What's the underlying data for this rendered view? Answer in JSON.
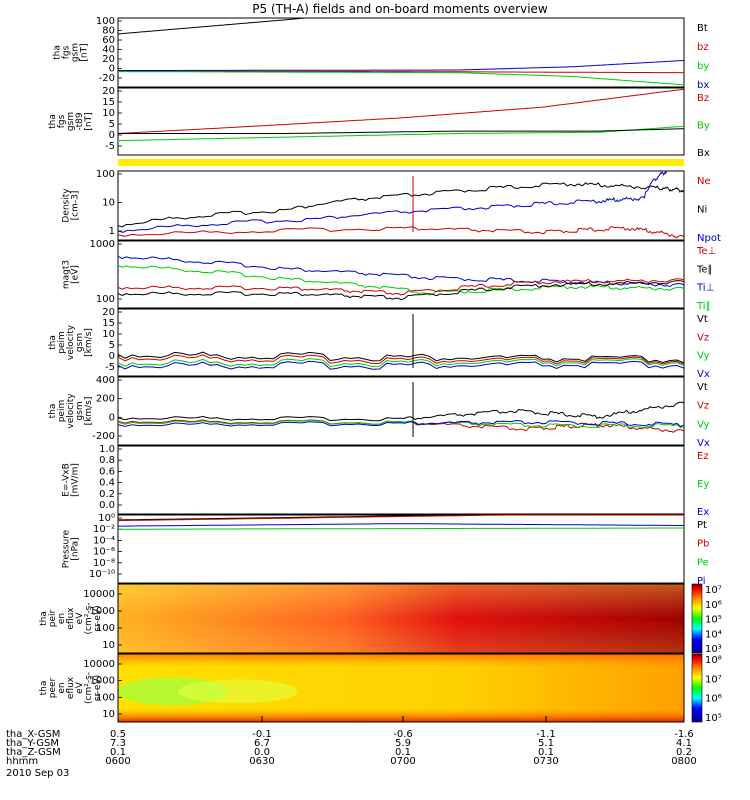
{
  "title": "P5 (TH-A) fields and on-board moments overview",
  "colors": {
    "black": "#000000",
    "red": "#cc0000",
    "green": "#00cc00",
    "blue": "#0000cc"
  },
  "chart_data": {
    "type": "line",
    "title": "P5 (TH-A) fields and on-board moments overview",
    "x": [
      "0600",
      "0630",
      "0700",
      "0730",
      "0800"
    ],
    "panels": [
      {
        "id": "fgs-gsm",
        "ylabel": [
          "tha",
          "fgs",
          "gsm",
          "[nT]"
        ],
        "ylim": [
          -30,
          100
        ],
        "yticks": [
          "100",
          "80",
          "60",
          "40",
          "20",
          "0",
          "-20"
        ],
        "legend": [
          "Bt",
          "bz",
          "by",
          "bx"
        ],
        "series": [
          {
            "name": "Bt",
            "color": "black",
            "points": [
              [
                0,
                70
              ],
              [
                0.1,
                79
              ],
              [
                0.2,
                88
              ],
              [
                0.3,
                97
              ],
              [
                0.33,
                100
              ]
            ]
          },
          {
            "name": "bz",
            "color": "red",
            "points": [
              [
                0,
                0
              ],
              [
                0.5,
                -1
              ],
              [
                1,
                -3
              ]
            ]
          },
          {
            "name": "by",
            "color": "green",
            "points": [
              [
                0,
                -1
              ],
              [
                0.6,
                -3
              ],
              [
                0.8,
                -10
              ],
              [
                1,
                -26
              ]
            ]
          },
          {
            "name": "bx",
            "color": "blue",
            "points": [
              [
                0,
                1
              ],
              [
                0.6,
                2
              ],
              [
                0.8,
                8
              ],
              [
                1,
                20
              ]
            ]
          }
        ]
      },
      {
        "id": "fgs-gsm-t89",
        "ylabel": [
          "tha",
          "fgs",
          "gsm",
          "-t89",
          "[nT]"
        ],
        "ylim": [
          -8,
          20
        ],
        "yticks": [
          "20",
          "15",
          "10",
          "5",
          "0",
          "-5"
        ],
        "legend": [
          "Bz",
          "By",
          "Bx"
        ],
        "series": [
          {
            "name": "Bz",
            "color": "red",
            "points": [
              [
                0,
                1
              ],
              [
                0.2,
                3.5
              ],
              [
                0.5,
                7.5
              ],
              [
                0.75,
                12
              ],
              [
                1,
                19.5
              ]
            ]
          },
          {
            "name": "By",
            "color": "green",
            "points": [
              [
                0,
                -2
              ],
              [
                0.3,
                -0.5
              ],
              [
                0.6,
                1
              ],
              [
                0.85,
                1.5
              ],
              [
                1,
                4
              ]
            ]
          },
          {
            "name": "Bx",
            "color": "black",
            "points": [
              [
                0,
                1
              ],
              [
                0.3,
                1
              ],
              [
                0.6,
                2
              ],
              [
                0.85,
                2
              ],
              [
                1,
                3
              ]
            ]
          }
        ]
      },
      {
        "id": "density",
        "ylabel": [
          "Density",
          "[cm-3]"
        ],
        "ylim": [
          1,
          200
        ],
        "log": true,
        "yticks": [
          "100",
          "10",
          "1"
        ],
        "legend": [
          "Ne",
          "Ni",
          "Npot"
        ],
        "series": [
          {
            "name": "Ne",
            "color": "red",
            "points": [
              [
                0,
                1.5
              ],
              [
                0.5,
                2.5
              ],
              [
                0.75,
                1.8
              ],
              [
                0.9,
                2.5
              ],
              [
                1,
                1.2
              ]
            ]
          },
          {
            "name": "Ni",
            "color": "black",
            "points": [
              [
                0,
                3
              ],
              [
                0.3,
                10
              ],
              [
                0.55,
                35
              ],
              [
                0.8,
                75
              ],
              [
                0.95,
                55
              ],
              [
                1,
                45
              ]
            ]
          },
          {
            "name": "Npot",
            "color": "blue",
            "points": [
              [
                0,
                2
              ],
              [
                0.35,
                5
              ],
              [
                0.65,
                12
              ],
              [
                0.85,
                20
              ],
              [
                0.93,
                25
              ],
              [
                0.97,
                200
              ]
            ]
          }
        ]
      },
      {
        "id": "mom-temp",
        "ylabel": [
          "magt3",
          "[eV]"
        ],
        "ylim": [
          100,
          2500
        ],
        "log": true,
        "yticks": [
          "1000",
          "100"
        ],
        "legend": [
          "Te⊥",
          "Te∥",
          "Ti⊥",
          "Ti∥"
        ],
        "series": [
          {
            "name": "Ti⊥",
            "color": "blue",
            "points": [
              [
                0,
                1200
              ],
              [
                0.3,
                650
              ],
              [
                0.55,
                420
              ],
              [
                0.8,
                350
              ],
              [
                1,
                300
              ]
            ]
          },
          {
            "name": "Ti∥",
            "color": "green",
            "points": [
              [
                0,
                780
              ],
              [
                0.3,
                400
              ],
              [
                0.55,
                200
              ],
              [
                0.8,
                280
              ],
              [
                1,
                250
              ]
            ]
          },
          {
            "name": "Te⊥",
            "color": "red",
            "points": [
              [
                0,
                270
              ],
              [
                0.3,
                260
              ],
              [
                0.5,
                200
              ],
              [
                0.75,
                350
              ],
              [
                1,
                380
              ]
            ]
          },
          {
            "name": "Te∥",
            "color": "black",
            "points": [
              [
                0,
                200
              ],
              [
                0.3,
                200
              ],
              [
                0.5,
                160
              ],
              [
                0.75,
                300
              ],
              [
                1,
                350
              ]
            ]
          }
        ]
      },
      {
        "id": "peim-velocity-1",
        "ylabel": [
          "tha",
          "peim",
          "velocity",
          "gsm",
          "[km/s]"
        ],
        "ylim": [
          -5,
          20
        ],
        "yticks": [
          "20",
          "15",
          "10",
          "5",
          "0",
          "-5"
        ],
        "legend": [
          "Vt",
          "Vz",
          "Vy",
          "Vx"
        ],
        "series": [
          {
            "name": "Vt",
            "color": "black",
            "points": [
              [
                0,
                3
              ],
              [
                0.5,
                2
              ],
              [
                1,
                1
              ]
            ]
          },
          {
            "name": "Vz",
            "color": "red",
            "points": [
              [
                0,
                2
              ],
              [
                0.5,
                1
              ],
              [
                1,
                0.5
              ]
            ]
          },
          {
            "name": "Vy",
            "color": "green",
            "points": [
              [
                0,
                0
              ],
              [
                0.5,
                0
              ],
              [
                1,
                0
              ]
            ]
          },
          {
            "name": "Vx",
            "color": "blue",
            "points": [
              [
                0,
                -1
              ],
              [
                0.5,
                -1
              ],
              [
                1,
                -1
              ]
            ]
          }
        ]
      },
      {
        "id": "peim-velocity-2",
        "ylabel": [
          "tha",
          "peim",
          "velocity",
          "gsm",
          "[km/s]"
        ],
        "ylim": [
          -200,
          400
        ],
        "yticks": [
          "400",
          "200",
          "0",
          "-200"
        ],
        "legend": [
          "Vt",
          "Vz",
          "Vy",
          "Vx"
        ],
        "series": [
          {
            "name": "Vt",
            "color": "black",
            "points": [
              [
                0,
                40
              ],
              [
                0.5,
                30
              ],
              [
                0.7,
                100
              ],
              [
                0.85,
                50
              ],
              [
                1,
                170
              ]
            ]
          },
          {
            "name": "Vz",
            "color": "red",
            "points": [
              [
                0,
                10
              ],
              [
                0.5,
                0
              ],
              [
                0.72,
                -60
              ],
              [
                0.85,
                -20
              ],
              [
                1,
                -80
              ]
            ]
          },
          {
            "name": "Vy",
            "color": "green",
            "points": [
              [
                0,
                0
              ],
              [
                0.5,
                0
              ],
              [
                0.75,
                -30
              ],
              [
                1,
                -30
              ]
            ]
          },
          {
            "name": "Vx",
            "color": "blue",
            "points": [
              [
                0,
                -20
              ],
              [
                0.5,
                -10
              ],
              [
                0.75,
                0
              ],
              [
                1,
                -20
              ]
            ]
          }
        ]
      },
      {
        "id": "e-vxb",
        "ylabel": [
          "E=-VxB",
          "[mV/m]"
        ],
        "ylim": [
          0,
          1
        ],
        "yticks": [
          "1.0",
          "0.8",
          "0.6",
          "0.4",
          "0.2",
          "0.0"
        ],
        "legend": [
          "Ez",
          "Ey",
          "Ex"
        ],
        "series": []
      },
      {
        "id": "pressure",
        "ylabel": [
          "Pressure",
          "[nPa]"
        ],
        "ylim": [
          -10,
          1
        ],
        "log": true,
        "yticks": [
          "10⁰",
          "10⁻²",
          "10⁻⁴",
          "10⁻⁶",
          "10⁻⁸",
          "10⁻¹⁰"
        ],
        "legend": [
          "Pt",
          "Pb",
          "Pe",
          "Pi"
        ],
        "series": [
          {
            "name": "Pt",
            "color": "black",
            "points": [
              [
                0,
                0.2
              ],
              [
                1,
                1.5
              ]
            ]
          },
          {
            "name": "Pb",
            "color": "red",
            "points": [
              [
                0,
                0.1
              ],
              [
                1,
                1.4
              ]
            ]
          },
          {
            "name": "Pe",
            "color": "green",
            "points": [
              [
                0,
                -1.3
              ],
              [
                1,
                -1.1
              ]
            ]
          },
          {
            "name": "Pi",
            "color": "blue",
            "points": [
              [
                0,
                -0.8
              ],
              [
                0.5,
                -0.4
              ],
              [
                1,
                -0.7
              ]
            ]
          }
        ]
      },
      {
        "id": "peir-spec",
        "type": "heatmap",
        "ylabel": [
          "tha",
          "peir",
          "en",
          "eflux",
          "eV",
          "(cm²-s-",
          "sr-eV)"
        ],
        "yticks": [
          "10000",
          "1000",
          "100",
          "10"
        ],
        "colorbar": [
          "10⁷",
          "10⁶",
          "10⁵",
          "10⁴",
          "10³"
        ]
      },
      {
        "id": "peer-spec",
        "type": "heatmap",
        "ylabel": [
          "tha",
          "peer",
          "en",
          "eflux",
          "eV",
          "(cm²-s-",
          "sr-eV)"
        ],
        "yticks": [
          "10000",
          "1000",
          "100",
          "10"
        ],
        "colorbar": [
          "10⁸",
          "10⁷",
          "10⁶",
          "10⁵"
        ]
      }
    ],
    "ephemeris": {
      "labels": [
        "tha_X-GSM",
        "tha_Y-GSM",
        "tha_Z-GSM",
        "hhmm"
      ],
      "rows": [
        [
          "0.5",
          "-0.1",
          "-0.6",
          "-1.1",
          "-1.6"
        ],
        [
          "7.3",
          "6.7",
          "5.9",
          "5.1",
          "4.1"
        ],
        [
          "0.1",
          "0.0",
          "0.1",
          "0.1",
          "0.2"
        ],
        [
          "0600",
          "0630",
          "0700",
          "0730",
          "0800"
        ]
      ],
      "date": "2010 Sep 03"
    }
  }
}
